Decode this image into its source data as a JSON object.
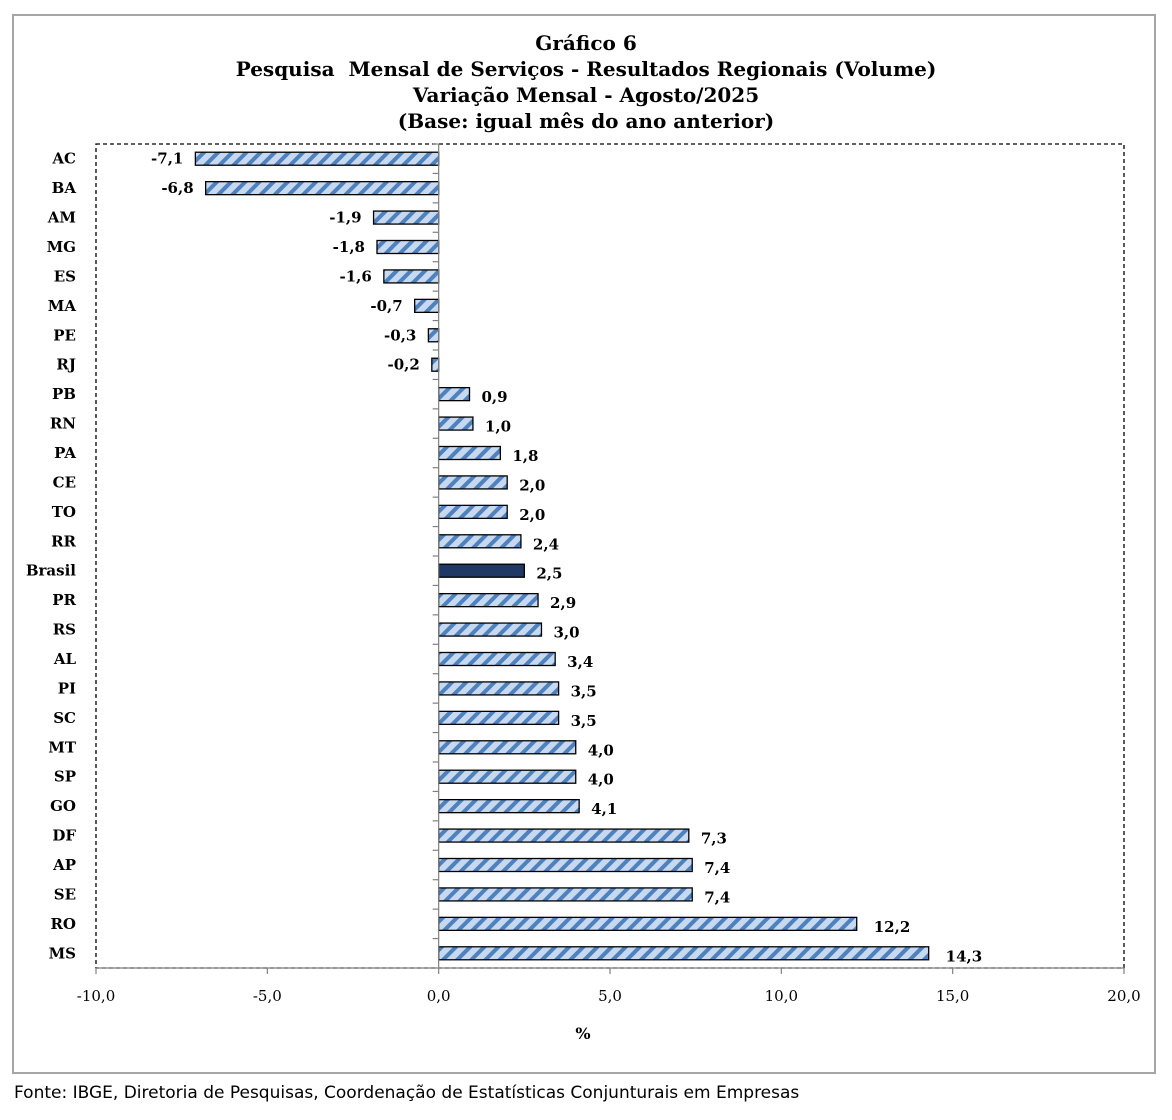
{
  "title": {
    "line1": "Gráfico 6",
    "line2": "Pesquisa  Mensal de Serviços - Resultados Regionais (Volume)",
    "line3": "Variação Mensal - Agosto/2025",
    "line4": "(Base: igual mês do ano anterior)"
  },
  "source": "Fonte: IBGE, Diretoria de Pesquisas, Coordenação de Estatísticas Conjunturais em Empresas",
  "chart_data": {
    "type": "bar",
    "orientation": "horizontal",
    "categories": [
      "AC",
      "BA",
      "AM",
      "MG",
      "ES",
      "MA",
      "PE",
      "RJ",
      "PB",
      "RN",
      "PA",
      "CE",
      "TO",
      "RR",
      "Brasil",
      "PR",
      "RS",
      "AL",
      "PI",
      "SC",
      "MT",
      "SP",
      "GO",
      "DF",
      "AP",
      "SE",
      "RO",
      "MS"
    ],
    "values": [
      -7.1,
      -6.8,
      -1.9,
      -1.8,
      -1.6,
      -0.7,
      -0.3,
      -0.2,
      0.9,
      1.0,
      1.8,
      2.0,
      2.0,
      2.4,
      2.5,
      2.9,
      3.0,
      3.4,
      3.5,
      3.5,
      4.0,
      4.0,
      4.1,
      7.3,
      7.4,
      7.4,
      12.2,
      14.3
    ],
    "labels": [
      "-7,1",
      "-6,8",
      "-1,9",
      "-1,8",
      "-1,6",
      "-0,7",
      "-0,3",
      "-0,2",
      "0,9",
      "1,0",
      "1,8",
      "2,0",
      "2,0",
      "2,4",
      "2,5",
      "2,9",
      "3,0",
      "3,4",
      "3,5",
      "3,5",
      "4,0",
      "4,0",
      "4,1",
      "7,3",
      "7,4",
      "7,4",
      "12,2",
      "14,3"
    ],
    "highlight": "Brasil",
    "xlabel": "%",
    "xlim": [
      -10,
      20
    ],
    "xticks": [
      -10,
      -5,
      0,
      5,
      10,
      15,
      20
    ],
    "xtick_labels": [
      "-10,0",
      "-5,0",
      "0,0",
      "5,0",
      "10,0",
      "15,0",
      "20,0"
    ],
    "colors": {
      "fill": "#c6d9f1",
      "stripe": "#4f81bd",
      "highlight": "#1f3864",
      "outline": "#000000"
    },
    "grid": false,
    "legend": "none"
  }
}
